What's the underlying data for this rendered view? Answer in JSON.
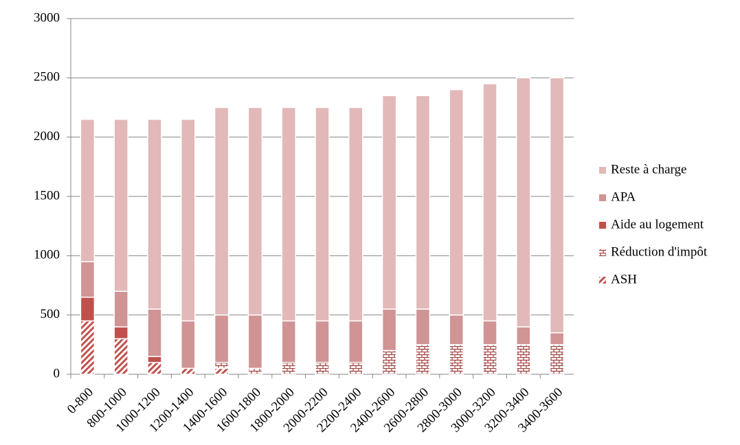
{
  "chart_data": {
    "type": "stacked_bar",
    "categories": [
      "0-800",
      "800-1000",
      "1000-1200",
      "1200-1400",
      "1400-1600",
      "1600-1800",
      "1800-2000",
      "2000-2200",
      "2200-2400",
      "2400-2600",
      "2600-2800",
      "2800-3000",
      "3000-3200",
      "3200-3400",
      "3400-3600"
    ],
    "series": [
      {
        "name": "ASH",
        "color": "#c0504d",
        "pattern": "hatch",
        "values": [
          450,
          300,
          100,
          50,
          50,
          0,
          0,
          0,
          0,
          0,
          0,
          0,
          0,
          0,
          0
        ]
      },
      {
        "name": "Réduction d'impôt",
        "color": "#a0403d",
        "pattern": "brick",
        "values": [
          0,
          0,
          0,
          0,
          50,
          50,
          100,
          100,
          100,
          200,
          250,
          250,
          250,
          250,
          250
        ]
      },
      {
        "name": "Aide au logement",
        "color": "#c0504d",
        "pattern": "solid",
        "values": [
          200,
          100,
          50,
          0,
          0,
          0,
          0,
          0,
          0,
          0,
          0,
          0,
          0,
          0,
          0
        ]
      },
      {
        "name": "APA",
        "color": "#d09494",
        "pattern": "solid",
        "values": [
          300,
          300,
          400,
          400,
          400,
          450,
          350,
          350,
          350,
          350,
          300,
          250,
          200,
          150,
          100
        ]
      },
      {
        "name": "Reste à charge",
        "color": "#e2b8b8",
        "pattern": "solid",
        "values": [
          1200,
          1450,
          1600,
          1700,
          1750,
          1750,
          1800,
          1800,
          1800,
          1800,
          1800,
          1900,
          2000,
          2100,
          2150
        ]
      }
    ],
    "ylim": [
      0,
      3000
    ],
    "yticks": [
      0,
      500,
      1000,
      1500,
      2000,
      2500,
      3000
    ],
    "grid": true,
    "legend": "right"
  }
}
